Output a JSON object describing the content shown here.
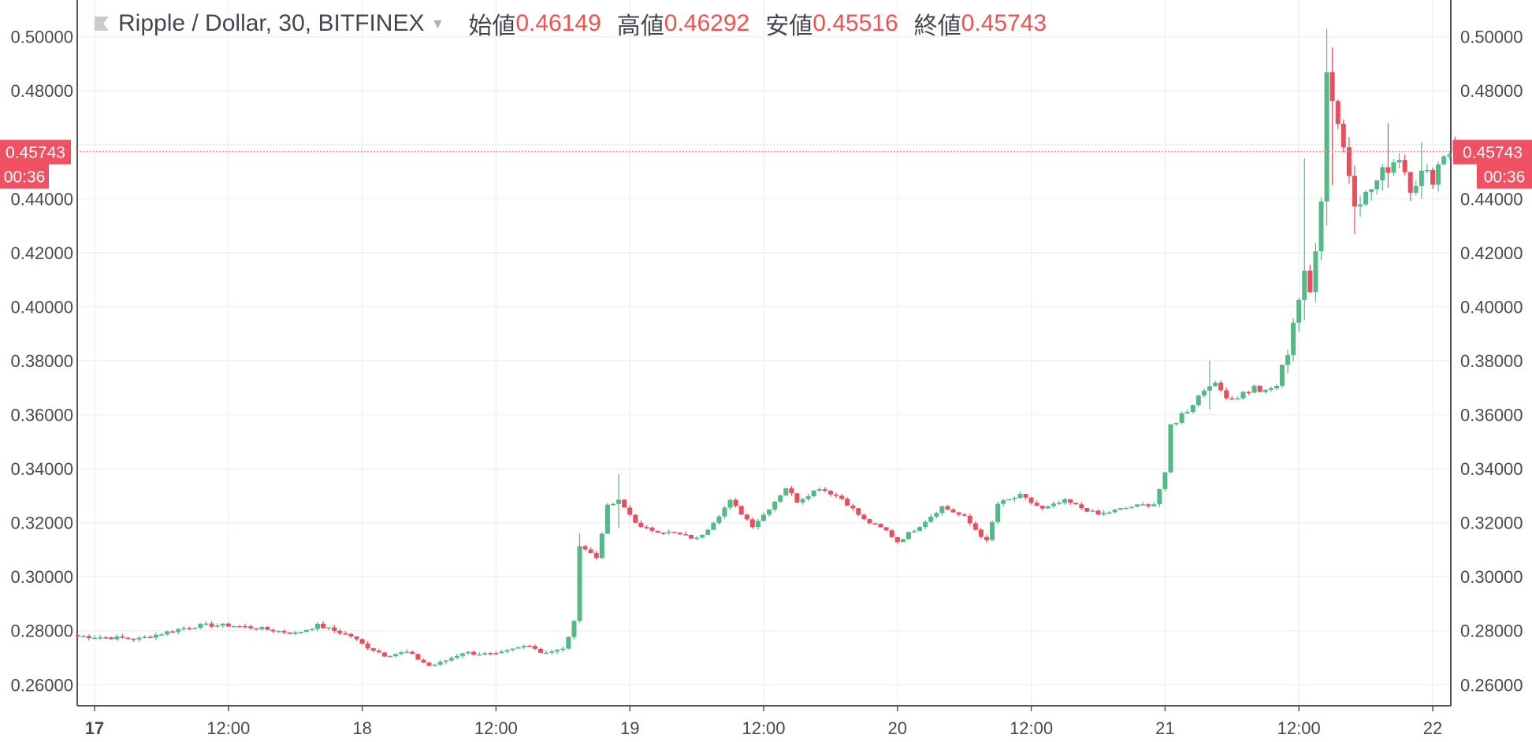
{
  "header": {
    "symbol": "Ripple / Dollar, 30, BITFINEX",
    "open_label": "始値",
    "open_value": "0.46149",
    "high_label": "高値",
    "high_value": "0.46292",
    "low_label": "安値",
    "low_value": "0.45516",
    "close_label": "終値",
    "close_value": "0.45743",
    "flag_icon": "flag-icon",
    "caret_icon": "caret-down-icon"
  },
  "price_marker": {
    "price": "0.45743",
    "timer": "00:36"
  },
  "colors": {
    "up": "#53b987",
    "down": "#eb4d5c",
    "grid": "#eef0f3",
    "axis_text": "#4a4a4a",
    "price_line": "#f08a96",
    "price_tag": "#ef5062"
  },
  "chart_data": {
    "type": "candlestick",
    "symbol": "Ripple / Dollar",
    "interval": "30",
    "exchange": "BITFINEX",
    "ohlc_last": {
      "open": 0.46149,
      "high": 0.46292,
      "low": 0.45516,
      "close": 0.45743
    },
    "y_ticks": [
      "0.26000",
      "0.28000",
      "0.30000",
      "0.32000",
      "0.34000",
      "0.36000",
      "0.38000",
      "0.40000",
      "0.42000",
      "0.44000",
      "0.48000",
      "0.50000"
    ],
    "y_tick_values": [
      0.26,
      0.28,
      0.3,
      0.32,
      0.34,
      0.36,
      0.38,
      0.4,
      0.42,
      0.44,
      0.48,
      0.5
    ],
    "ylim": [
      0.2522,
      0.5136
    ],
    "x_ticks": [
      "17",
      "12:00",
      "18",
      "12:00",
      "19",
      "12:00",
      "20",
      "12:00",
      "21",
      "12:00",
      "22"
    ],
    "x_tick_times": [
      "2018-09-17 00:00",
      "2018-09-17 12:00",
      "2018-09-18 00:00",
      "2018-09-18 12:00",
      "2018-09-19 00:00",
      "2018-09-19 12:00",
      "2018-09-20 00:00",
      "2018-09-20 12:00",
      "2018-09-21 00:00",
      "2018-09-21 12:00",
      "2018-09-22 00:00"
    ],
    "x_tick_bold": [
      true,
      false,
      false,
      false,
      false,
      false,
      false,
      false,
      false,
      false,
      false
    ],
    "current_price": 0.45743,
    "countdown": "00:36",
    "grid": true,
    "close_path": [
      [
        "2018-09-16 22:30",
        0.278
      ],
      [
        "2018-09-17 04:00",
        0.277
      ],
      [
        "2018-09-17 08:00",
        0.281
      ],
      [
        "2018-09-17 09:30",
        0.282
      ],
      [
        "2018-09-17 12:00",
        0.282
      ],
      [
        "2018-09-17 14:30",
        0.281
      ],
      [
        "2018-09-17 18:00",
        0.279
      ],
      [
        "2018-09-17 20:00",
        0.282
      ],
      [
        "2018-09-17 23:00",
        0.278
      ],
      [
        "2018-09-18 00:00",
        0.275
      ],
      [
        "2018-09-18 02:00",
        0.271
      ],
      [
        "2018-09-18 04:00",
        0.272
      ],
      [
        "2018-09-18 06:00",
        0.267
      ],
      [
        "2018-09-18 07:00",
        0.268
      ],
      [
        "2018-09-18 09:00",
        0.272
      ],
      [
        "2018-09-18 12:00",
        0.271
      ],
      [
        "2018-09-18 15:00",
        0.275
      ],
      [
        "2018-09-18 16:00",
        0.272
      ],
      [
        "2018-09-18 18:00",
        0.273
      ],
      [
        "2018-09-18 19:00",
        0.283
      ],
      [
        "2018-09-18 19:30",
        0.312
      ],
      [
        "2018-09-18 21:00",
        0.307
      ],
      [
        "2018-09-18 22:00",
        0.326
      ],
      [
        "2018-09-18 23:00",
        0.328
      ],
      [
        "2018-09-19 01:00",
        0.318
      ],
      [
        "2018-09-19 04:00",
        0.316
      ],
      [
        "2018-09-19 06:00",
        0.314
      ],
      [
        "2018-09-19 07:00",
        0.318
      ],
      [
        "2018-09-19 09:00",
        0.328
      ],
      [
        "2018-09-19 11:00",
        0.319
      ],
      [
        "2018-09-19 12:00",
        0.323
      ],
      [
        "2018-09-19 14:00",
        0.333
      ],
      [
        "2018-09-19 15:00",
        0.328
      ],
      [
        "2018-09-19 17:00",
        0.333
      ],
      [
        "2018-09-19 19:00",
        0.329
      ],
      [
        "2018-09-19 21:00",
        0.321
      ],
      [
        "2018-09-19 23:00",
        0.317
      ],
      [
        "2018-09-20 00:00",
        0.313
      ],
      [
        "2018-09-20 02:00",
        0.319
      ],
      [
        "2018-09-20 04:00",
        0.326
      ],
      [
        "2018-09-20 06:00",
        0.322
      ],
      [
        "2018-09-20 08:00",
        0.313
      ],
      [
        "2018-09-20 09:00",
        0.327
      ],
      [
        "2018-09-20 11:00",
        0.33
      ],
      [
        "2018-09-20 13:00",
        0.325
      ],
      [
        "2018-09-20 15:00",
        0.328
      ],
      [
        "2018-09-20 18:00",
        0.323
      ],
      [
        "2018-09-20 21:00",
        0.326
      ],
      [
        "2018-09-20 23:00",
        0.327
      ],
      [
        "2018-09-21 00:00",
        0.338
      ],
      [
        "2018-09-21 00:30",
        0.356
      ],
      [
        "2018-09-21 02:00",
        0.362
      ],
      [
        "2018-09-21 04:00",
        0.372
      ],
      [
        "2018-09-21 06:00",
        0.366
      ],
      [
        "2018-09-21 08:00",
        0.37
      ],
      [
        "2018-09-21 09:00",
        0.368
      ],
      [
        "2018-09-21 10:00",
        0.371
      ],
      [
        "2018-09-21 11:00",
        0.384
      ],
      [
        "2018-09-21 11:30",
        0.395
      ],
      [
        "2018-09-21 12:30",
        0.411
      ],
      [
        "2018-09-21 13:00",
        0.405
      ],
      [
        "2018-09-21 14:00",
        0.441
      ],
      [
        "2018-09-21 14:30",
        0.487
      ],
      [
        "2018-09-21 16:00",
        0.459
      ],
      [
        "2018-09-21 17:00",
        0.44
      ],
      [
        "2018-09-21 18:00",
        0.441
      ],
      [
        "2018-09-21 20:00",
        0.452
      ],
      [
        "2018-09-21 21:00",
        0.456
      ],
      [
        "2018-09-21 22:00",
        0.445
      ],
      [
        "2018-09-21 23:00",
        0.449
      ],
      [
        "2018-09-22 00:00",
        0.448
      ],
      [
        "2018-09-22 01:00",
        0.457
      ],
      [
        "2018-09-22 02:00",
        0.4574
      ]
    ],
    "spikes": [
      [
        "2018-09-18 19:30",
        0.3,
        0.316
      ],
      [
        "2018-09-18 23:00",
        0.318,
        0.338
      ],
      [
        "2018-09-21 04:00",
        0.362,
        0.38
      ],
      [
        "2018-09-21 12:30",
        0.395,
        0.455
      ],
      [
        "2018-09-21 14:30",
        0.43,
        0.503
      ],
      [
        "2018-09-21 15:00",
        0.445,
        0.496
      ],
      [
        "2018-09-21 17:00",
        0.427,
        0.45
      ],
      [
        "2018-09-21 20:00",
        0.444,
        0.468
      ],
      [
        "2018-09-21 23:00",
        0.44,
        0.461
      ]
    ]
  }
}
